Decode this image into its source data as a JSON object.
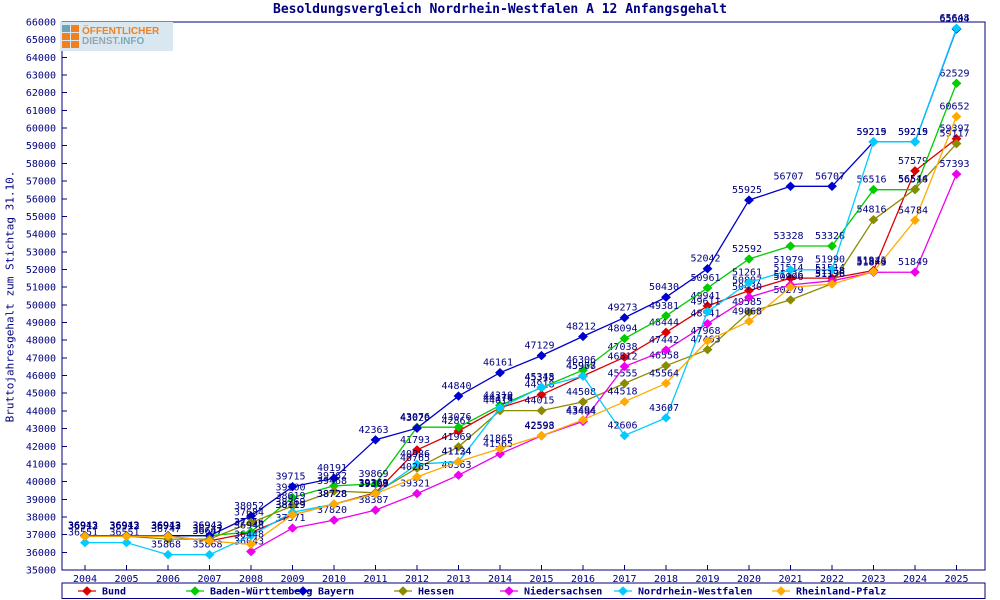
{
  "logo": {
    "line1": "ÖFFENTLICHER",
    "line2a": "DIENST.",
    "line2b": "INFO"
  },
  "chart_data": {
    "type": "line",
    "title": "Besoldungsvergleich Nordrhein-Westfalen A 12 Anfangsgehalt",
    "ylabel": "Bruttojahresgehalt zum Stichtag 31.10.",
    "ylim": [
      35000,
      66000
    ],
    "ytick_step": 1000,
    "grid": false,
    "legend_position": "bottom",
    "axis_color": "#000080",
    "label_color": "#000080",
    "x": [
      2004,
      2005,
      2006,
      2007,
      2008,
      2009,
      2010,
      2011,
      2012,
      2013,
      2014,
      2015,
      2016,
      2017,
      2018,
      2019,
      2020,
      2021,
      2022,
      2023,
      2024,
      2025
    ],
    "series": [
      {
        "name": "Bund",
        "color": "#dc0000",
        "values": [
          36912,
          36912,
          36912,
          36647,
          37115,
          38119,
          38728,
          39369,
          41793,
          42861,
          44174,
          44918,
          45978,
          47038,
          48444,
          49941,
          50807,
          51514,
          51514,
          51943,
          57579,
          59397
        ]
      },
      {
        "name": "Baden-Württemberg",
        "color": "#00cc00",
        "values": [
          36943,
          36943,
          36943,
          36943,
          37156,
          39100,
          39762,
          39869,
          43076,
          43076,
          44310,
          45318,
          46306,
          48094,
          49381,
          50961,
          52592,
          53328,
          53328,
          56516,
          56516,
          62529
        ]
      },
      {
        "name": "Bayern",
        "color": "#0000cd",
        "values": [
          36943,
          36943,
          36943,
          36943,
          38052,
          39715,
          40191,
          42363,
          43020,
          44840,
          46161,
          47129,
          48212,
          49273,
          50430,
          52042,
          55925,
          56707,
          56707,
          59219,
          59219,
          65604
        ]
      },
      {
        "name": "Hessen",
        "color": "#8b8b00",
        "values": [
          36912,
          36912,
          36747,
          36747,
          37684,
          38619,
          39468,
          39369,
          40765,
          41969,
          44015,
          44015,
          44508,
          45555,
          46558,
          47463,
          49585,
          50279,
          51198,
          54816,
          56544,
          59117
        ]
      },
      {
        "name": "Niedersachsen",
        "color": "#ee00ee",
        "values": [
          null,
          null,
          null,
          null,
          36043,
          37371,
          37820,
          38387,
          39321,
          40363,
          41565,
          42593,
          43404,
          46512,
          47442,
          48941,
          50430,
          51126,
          51358,
          51843,
          51849,
          57393
        ]
      },
      {
        "name": "Nordrhein-Westfalen",
        "color": "#00ccff",
        "values": [
          36551,
          36551,
          35868,
          35868,
          36948,
          38269,
          38728,
          39309,
          40986,
          41124,
          44176,
          45345,
          45967,
          42606,
          43607,
          49611,
          51261,
          51979,
          51990,
          59215,
          59215,
          65648
        ]
      },
      {
        "name": "Rheinland-Pfalz",
        "color": "#ffaa00",
        "values": [
          36912,
          36912,
          36912,
          36647,
          36448,
          38119,
          38728,
          39309,
          40265,
          41134,
          41865,
          42598,
          43494,
          44518,
          45564,
          47968,
          49068,
          50996,
          51176,
          51876,
          54784,
          60652
        ]
      }
    ]
  }
}
